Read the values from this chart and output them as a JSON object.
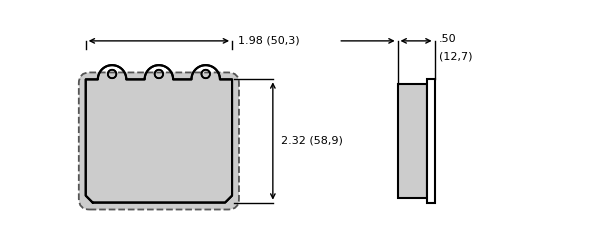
{
  "bg_color": "#ffffff",
  "line_color": "#000000",
  "pad_fill": "#cccccc",
  "dashed_color": "#555555",
  "dim_color": "#000000",
  "width_label": "1.98 (50,3)",
  "height_label": "2.32 (58,9)",
  "thickness_label": ".50",
  "thickness_label2": "(12,7)",
  "fig_width": 6.0,
  "fig_height": 2.38
}
